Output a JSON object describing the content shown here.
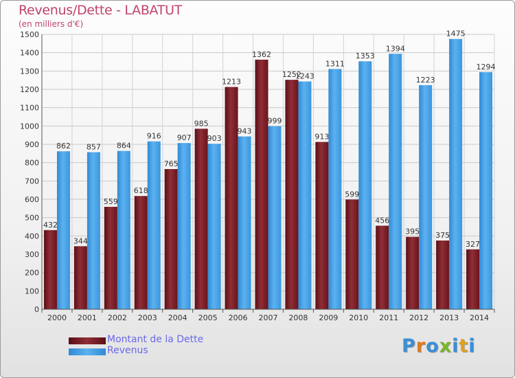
{
  "header": {
    "title": "Revenus/Dette - LABATUT",
    "subtitle": "(en milliers d'€)"
  },
  "legend": {
    "debt_label": "Montant de la Dette",
    "revenue_label": "Revenus"
  },
  "logo": {
    "text": "Proxiti"
  },
  "colors": {
    "debt": "#7a1f27",
    "revenue": "#3d9be3",
    "title": "#c0446a",
    "legend_text": "#6a6ae8"
  },
  "chart_data": {
    "type": "bar",
    "categories": [
      "2000",
      "2001",
      "2002",
      "2003",
      "2004",
      "2005",
      "2006",
      "2007",
      "2008",
      "2009",
      "2010",
      "2011",
      "2012",
      "2013",
      "2014"
    ],
    "series": [
      {
        "name": "Montant de la Dette",
        "values": [
          432,
          344,
          559,
          618,
          765,
          985,
          1213,
          1362,
          1252,
          913,
          599,
          456,
          395,
          375,
          327
        ]
      },
      {
        "name": "Revenus",
        "values": [
          862,
          857,
          864,
          916,
          907,
          903,
          943,
          999,
          1243,
          1311,
          1353,
          1394,
          1223,
          1475,
          1294
        ]
      }
    ],
    "data_labels": {
      "Montant de la Dette": [
        "432",
        "344",
        "559",
        "618",
        "765",
        "985",
        "1213",
        "1362",
        "1252",
        "913",
        "599",
        "456",
        "395",
        "375",
        "327"
      ],
      "Revenus": [
        "862",
        "857",
        "864",
        "916",
        "907",
        "903",
        "943",
        "999",
        "1243",
        "1311",
        "1353",
        "1394",
        "1223",
        "1475",
        "1294"
      ]
    },
    "title": "Revenus/Dette - LABATUT",
    "subtitle": "(en milliers d'€)",
    "ylim": [
      0,
      1500
    ],
    "yticks": [
      0,
      100,
      200,
      300,
      400,
      500,
      600,
      700,
      800,
      900,
      1000,
      1100,
      1200,
      1300,
      1400,
      1500
    ],
    "grid": true,
    "legend_position": "bottom-left"
  }
}
